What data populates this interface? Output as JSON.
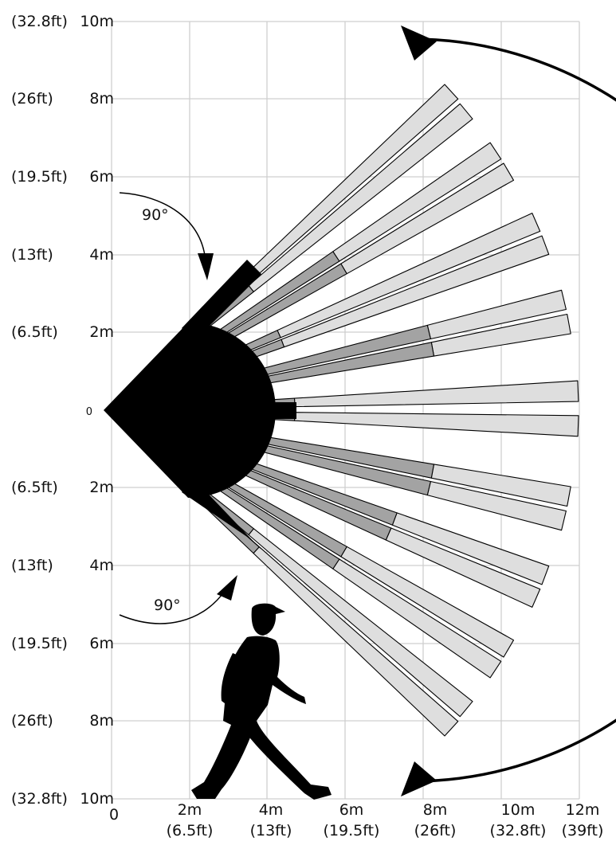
{
  "y_axis_labels": [
    {
      "ft": "(32.8ft)",
      "m": "10m"
    },
    {
      "ft": "(26ft)",
      "m": "8m"
    },
    {
      "ft": "(19.5ft)",
      "m": "6m"
    },
    {
      "ft": "(13ft)",
      "m": "4m"
    },
    {
      "ft": "(6.5ft)",
      "m": "2m"
    },
    {
      "ft": "",
      "m": "0"
    },
    {
      "ft": "(6.5ft)",
      "m": "2m"
    },
    {
      "ft": "(13ft)",
      "m": "4m"
    },
    {
      "ft": "(19.5ft)",
      "m": "6m"
    },
    {
      "ft": "(26ft)",
      "m": "8m"
    },
    {
      "ft": "(32.8ft)",
      "m": "10m"
    }
  ],
  "x_axis_labels": [
    {
      "m": "0",
      "ft": ""
    },
    {
      "m": "2m",
      "ft": "(6.5ft)"
    },
    {
      "m": "4m",
      "ft": "(13ft)"
    },
    {
      "m": "6m",
      "ft": "(19.5ft)"
    },
    {
      "m": "8m",
      "ft": "(26ft)"
    },
    {
      "m": "10m",
      "ft": "(32.8ft)"
    },
    {
      "m": "12m",
      "ft": "(39ft)"
    }
  ],
  "angle_labels": {
    "upper": "90°",
    "lower": "90°"
  },
  "colors": {
    "near_zone": "#000000",
    "mid_zone": "#a3a3a3",
    "far_zone": "#dedede",
    "outline": "#000000",
    "grid": "#cfcfcf"
  },
  "icons": {
    "person": "walking-person-icon"
  }
}
